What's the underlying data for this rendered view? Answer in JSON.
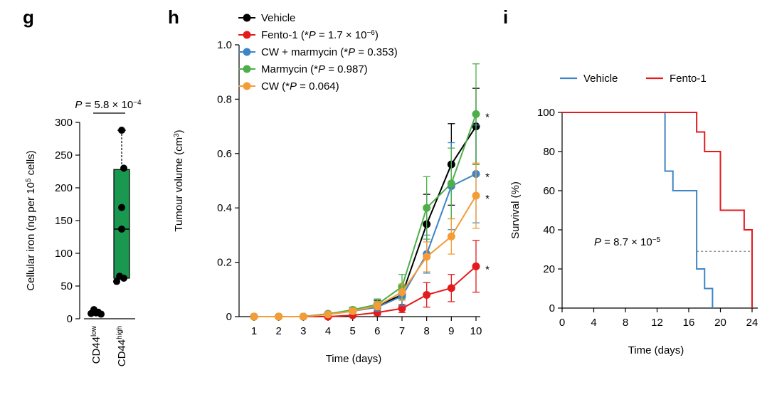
{
  "panels": {
    "g": {
      "letter": "g"
    },
    "h": {
      "letter": "h"
    },
    "i": {
      "letter": "i"
    }
  },
  "chart_data": [
    {
      "panel": "g",
      "type": "box",
      "ylabel": "Cellular iron (ng per 10^5 cells)",
      "ylabel_parts": [
        "Cellular iron (ng per 10",
        "5",
        " cells)"
      ],
      "ylim": [
        0,
        300
      ],
      "yticks": [
        "0",
        "50",
        "100",
        "150",
        "200",
        "250",
        "300"
      ],
      "ytick_values": [
        0,
        50,
        100,
        150,
        200,
        250,
        300
      ],
      "categories": [
        {
          "base": "CD44",
          "sup": "low"
        },
        {
          "base": "CD44",
          "sup": "high"
        }
      ],
      "points": [
        [
          14,
          10,
          8,
          7,
          9
        ],
        [
          288,
          230,
          170,
          137,
          65,
          62,
          57
        ]
      ],
      "box_high": {
        "q1": 62,
        "median": 137,
        "q3": 228,
        "min": 57,
        "max": 288,
        "color": "#1a9850"
      },
      "box_low": {
        "q1": 7,
        "median": 9,
        "q3": 11,
        "min": 7,
        "max": 14
      },
      "pvalue": {
        "prefix": "P",
        "text": " = 5.8 × 10",
        "exp": "−4"
      }
    },
    {
      "panel": "h",
      "type": "line",
      "xlabel": "Time (days)",
      "ylabel": "Tumour volume (cm³)",
      "ylabel_parts": [
        "Tumour volume (cm",
        "3",
        ")"
      ],
      "x": [
        1,
        2,
        3,
        4,
        5,
        6,
        7,
        8,
        9,
        10
      ],
      "xticks": [
        "1",
        "2",
        "3",
        "4",
        "5",
        "6",
        "7",
        "8",
        "9",
        "10"
      ],
      "ylim": [
        0,
        1.0
      ],
      "yticks": [
        "0",
        "0.2",
        "0.4",
        "0.6",
        "0.8",
        "1.0"
      ],
      "ytick_values": [
        0,
        0.2,
        0.4,
        0.6,
        0.8,
        1.0
      ],
      "series": [
        {
          "name": "Vehicle",
          "color": "#000000",
          "label": [
            "Vehicle"
          ],
          "values": [
            0,
            0,
            0,
            0.01,
            0.02,
            0.04,
            0.08,
            0.34,
            0.56,
            0.7
          ],
          "errors": [
            0,
            0,
            0,
            0.005,
            0.01,
            0.02,
            0.04,
            0.11,
            0.15,
            0.14
          ],
          "star": false
        },
        {
          "name": "Fento-1",
          "color": "#e41a1c",
          "label": [
            "Fento-1 (*",
            "P",
            " = 1.7 × 10",
            "−6",
            ")"
          ],
          "values": [
            0,
            0,
            0,
            0,
            0.005,
            0.015,
            0.03,
            0.08,
            0.105,
            0.185
          ],
          "errors": [
            0,
            0,
            0,
            0,
            0.005,
            0.01,
            0.015,
            0.045,
            0.05,
            0.095
          ],
          "star": true
        },
        {
          "name": "CW + marmycin",
          "color": "#3d85c6",
          "label": [
            "CW + marmycin (*",
            "P",
            " = 0.353)"
          ],
          "values": [
            0,
            0,
            0,
            0.01,
            0.02,
            0.035,
            0.075,
            0.23,
            0.48,
            0.525
          ],
          "errors": [
            0,
            0,
            0,
            0.005,
            0.01,
            0.015,
            0.035,
            0.07,
            0.16,
            0.18
          ],
          "star": true
        },
        {
          "name": "Marmycin",
          "color": "#4daf4a",
          "label": [
            "Marmycin (*",
            "P",
            " = 0.987)"
          ],
          "values": [
            0,
            0,
            0,
            0.01,
            0.025,
            0.045,
            0.11,
            0.4,
            0.49,
            0.745
          ],
          "errors": [
            0,
            0,
            0,
            0.005,
            0.01,
            0.02,
            0.045,
            0.115,
            0.13,
            0.185
          ],
          "star": true
        },
        {
          "name": "CW",
          "color": "#f59c37",
          "label": [
            "CW (*",
            "P",
            " = 0.064)"
          ],
          "values": [
            0,
            0,
            0,
            0.008,
            0.02,
            0.04,
            0.09,
            0.22,
            0.295,
            0.445
          ],
          "errors": [
            0,
            0,
            0,
            0.004,
            0.01,
            0.015,
            0.03,
            0.055,
            0.065,
            0.12
          ],
          "star": true
        }
      ],
      "star_symbol": "*"
    },
    {
      "panel": "i",
      "type": "step",
      "xlabel": "Time (days)",
      "ylabel": "Survival (%)",
      "xlim": [
        0,
        24
      ],
      "xticks": [
        "0",
        "4",
        "8",
        "12",
        "16",
        "20",
        "24"
      ],
      "xtick_values": [
        0,
        4,
        8,
        12,
        16,
        20,
        24
      ],
      "ylim": [
        0,
        100
      ],
      "yticks": [
        "0",
        "20",
        "40",
        "60",
        "80",
        "100"
      ],
      "ytick_values": [
        0,
        20,
        40,
        60,
        80,
        100
      ],
      "series": [
        {
          "name": "Vehicle",
          "color": "#3d85c6",
          "steps": [
            [
              0,
              100
            ],
            [
              13,
              100
            ],
            [
              13,
              70
            ],
            [
              14,
              70
            ],
            [
              14,
              60
            ],
            [
              17,
              60
            ],
            [
              17,
              20
            ],
            [
              18,
              20
            ],
            [
              18,
              10
            ],
            [
              19,
              10
            ],
            [
              19,
              0
            ]
          ]
        },
        {
          "name": "Fento-1",
          "color": "#e41a1c",
          "steps": [
            [
              0,
              100
            ],
            [
              17,
              100
            ],
            [
              17,
              90
            ],
            [
              18,
              90
            ],
            [
              18,
              80
            ],
            [
              20,
              80
            ],
            [
              20,
              50
            ],
            [
              23,
              50
            ],
            [
              23,
              40
            ],
            [
              24,
              40
            ],
            [
              24,
              0
            ]
          ]
        }
      ],
      "median_line": {
        "y": 29,
        "x_start": 17,
        "x_end": 24
      },
      "pvalue": {
        "prefix": "P",
        "text": " = 8.7 × 10",
        "exp": "−5"
      }
    }
  ]
}
